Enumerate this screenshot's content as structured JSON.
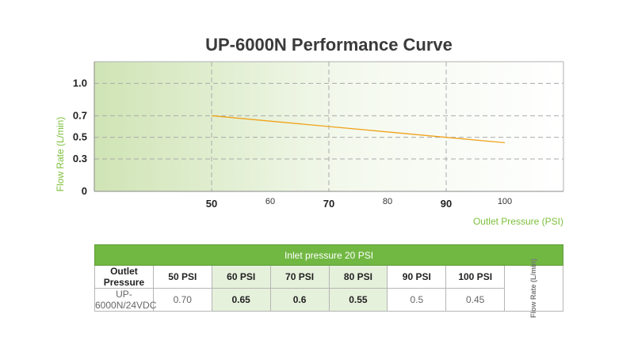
{
  "chart_data": {
    "type": "line",
    "title": "UP-6000N Performance Curve",
    "xlabel": "Outlet Pressure (PSI)",
    "ylabel": "Flow Rate (L/min)",
    "xlim": [
      30,
      110
    ],
    "ylim": [
      0,
      1.2
    ],
    "x_ticks": [
      50,
      60,
      70,
      80,
      90,
      100
    ],
    "x_tick_labels": [
      "50",
      "60",
      "70",
      "80",
      "90",
      "100"
    ],
    "y_ticks": [
      0,
      0.3,
      0.5,
      0.7,
      1.0
    ],
    "y_tick_labels": [
      "0",
      "0.3",
      "0.5",
      "0.7",
      "1.0"
    ],
    "grid": true,
    "legend": "none",
    "series": [
      {
        "x": [
          50,
          60,
          70,
          80,
          90,
          100
        ],
        "y": [
          0.7,
          0.65,
          0.6,
          0.55,
          0.5,
          0.45
        ]
      }
    ],
    "colors": {
      "line": "#f0a21a",
      "grid": "#aaaaaa",
      "bg_start": "#cfe4b5",
      "bg_end": "#ffffff"
    }
  },
  "table": {
    "caption": "Inlet pressure 20 PSI",
    "row_header": "Outlet Pressure",
    "columns": [
      "50 PSI",
      "60 PSI",
      "70 PSI",
      "80 PSI",
      "90 PSI",
      "100 PSI"
    ],
    "model": "UP-6000N/24VDC",
    "values": [
      "0.70",
      "0.65",
      "0.6",
      "0.55",
      "0.5",
      "0.45"
    ],
    "unit": "Flow Rate (L/min)",
    "colors": {
      "header": "#71b843",
      "shade": "#e6f1dc"
    }
  }
}
